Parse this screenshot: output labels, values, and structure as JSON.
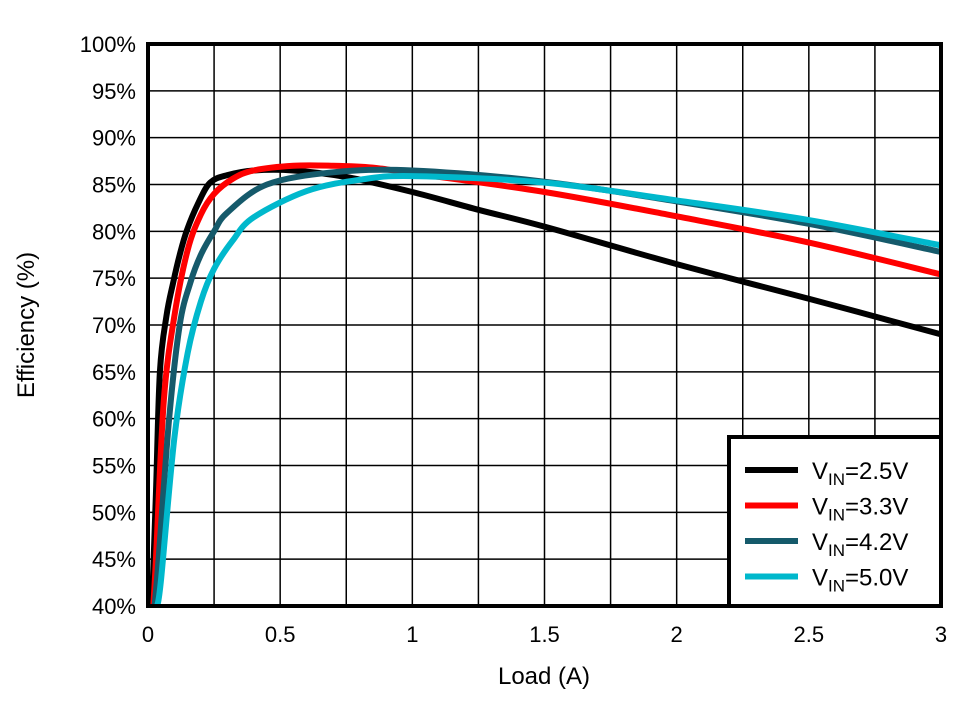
{
  "chart_data": {
    "type": "line",
    "title": "",
    "xlabel": "Load (A)",
    "ylabel": "Efficiency (%)",
    "xlim": [
      0,
      3
    ],
    "ylim": [
      40,
      100
    ],
    "x_ticks": [
      "0",
      "0.5",
      "1",
      "1.5",
      "2",
      "2.5",
      "3"
    ],
    "x_tick_values": [
      0,
      0.5,
      1,
      1.5,
      2,
      2.5,
      3
    ],
    "y_ticks": [
      "40%",
      "45%",
      "50%",
      "55%",
      "60%",
      "65%",
      "70%",
      "75%",
      "80%",
      "85%",
      "90%",
      "95%",
      "100%"
    ],
    "y_tick_values": [
      40,
      45,
      50,
      55,
      60,
      65,
      70,
      75,
      80,
      85,
      90,
      95,
      100
    ],
    "x_grid_step": 0.25,
    "grid": true,
    "legend_position": "bottom-right",
    "series": [
      {
        "name": "V_IN=2.5V",
        "legend_main": "V",
        "legend_sub": "IN",
        "legend_rest": "=2.5V",
        "color": "#000000",
        "x": [
          0.015,
          0.03,
          0.045,
          0.07,
          0.095,
          0.12,
          0.147,
          0.19,
          0.235,
          0.3,
          0.4,
          0.55,
          0.75,
          1,
          1.25,
          1.5,
          2,
          2.5,
          3
        ],
        "y": [
          40,
          52,
          65,
          71,
          74.5,
          77.5,
          80.1,
          83,
          85.2,
          86,
          86.5,
          86.5,
          85.8,
          84.2,
          82.3,
          80.5,
          76.5,
          72.8,
          69
        ]
      },
      {
        "name": "V_IN=3.3V",
        "legend_main": "V",
        "legend_sub": "IN",
        "legend_rest": "=3.3V",
        "color": "#ff0000",
        "x": [
          0.02,
          0.03,
          0.06,
          0.1,
          0.15,
          0.2,
          0.25,
          0.32,
          0.4,
          0.55,
          0.7,
          0.85,
          1,
          1.5,
          2,
          2.5,
          3
        ],
        "y": [
          40,
          45,
          62,
          71,
          78,
          81.8,
          84,
          85.6,
          86.5,
          87,
          87,
          86.8,
          86.2,
          84.2,
          81.6,
          78.8,
          75.4
        ]
      },
      {
        "name": "V_IN=4.2V",
        "legend_main": "V",
        "legend_sub": "IN",
        "legend_rest": "=4.2V",
        "color": "#155a6b",
        "x": [
          0.025,
          0.04,
          0.08,
          0.12,
          0.16,
          0.2,
          0.25,
          0.3,
          0.45,
          0.7,
          1,
          1.5,
          2,
          2.5,
          3
        ],
        "y": [
          40,
          45,
          60,
          70,
          74.5,
          77.5,
          80,
          82,
          85,
          86.3,
          86.5,
          85.3,
          83.2,
          80.8,
          77.8
        ]
      },
      {
        "name": "V_IN=5.0V",
        "legend_main": "V",
        "legend_sub": "IN",
        "legend_rest": "=5.0V",
        "color": "#00b8cc",
        "x": [
          0.035,
          0.05,
          0.1,
          0.15,
          0.2,
          0.25,
          0.32,
          0.4,
          0.6,
          0.8,
          1,
          1.5,
          2,
          2.5,
          3
        ],
        "y": [
          40,
          43,
          58,
          67,
          72.5,
          76,
          79,
          81.5,
          84.3,
          85.5,
          85.9,
          85.2,
          83.3,
          81.2,
          78.5
        ]
      }
    ]
  }
}
